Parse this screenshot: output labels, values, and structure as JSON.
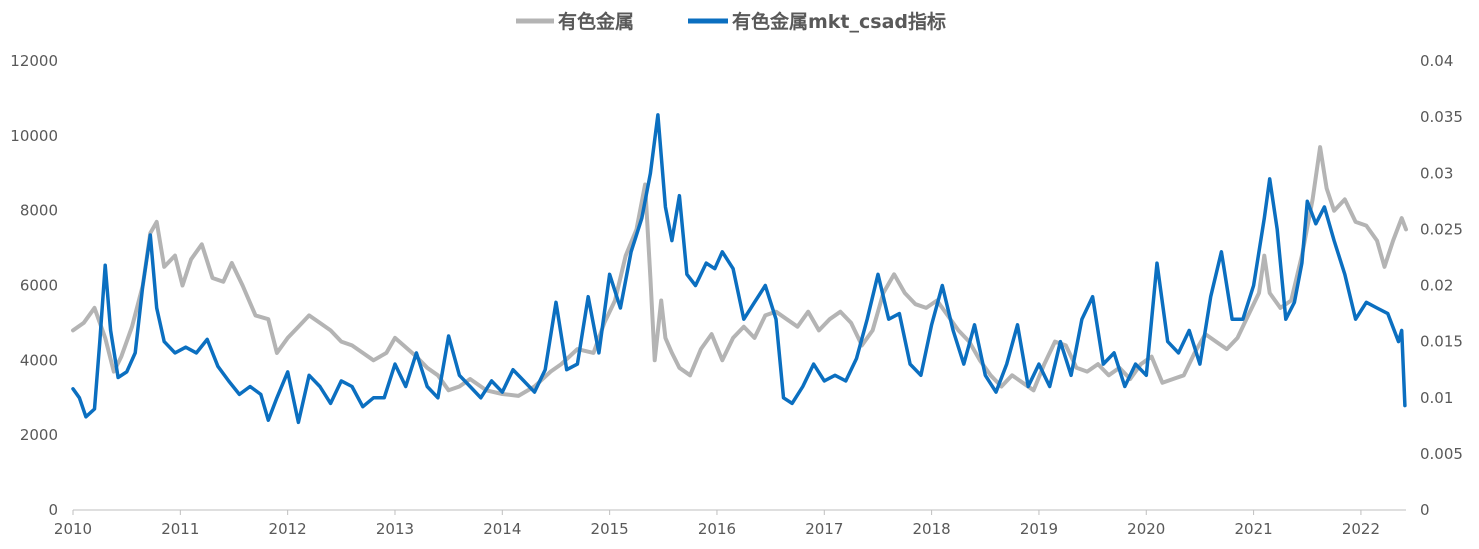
{
  "chart_data": {
    "type": "line",
    "title": "",
    "legend_position": "top-center",
    "grid": false,
    "x_ticks": [
      "2010",
      "2011",
      "2012",
      "2013",
      "2014",
      "2015",
      "2016",
      "2017",
      "2018",
      "2019",
      "2020",
      "2021",
      "2022"
    ],
    "y_left": {
      "min": 0,
      "max": 12000,
      "ticks": [
        "0",
        "2000",
        "4000",
        "6000",
        "8000",
        "10000",
        "12000"
      ]
    },
    "y_right": {
      "min": 0,
      "max": 0.04,
      "ticks": [
        "0",
        "0.005",
        "0.01",
        "0.015",
        "0.02",
        "0.025",
        "0.03",
        "0.035",
        "0.04"
      ]
    },
    "series": [
      {
        "name": "有色金属",
        "axis": "left",
        "color": "#b4b4b4",
        "points": [
          [
            2010.0,
            4800
          ],
          [
            2010.1,
            5000
          ],
          [
            2010.2,
            5400
          ],
          [
            2010.3,
            4600
          ],
          [
            2010.38,
            3700
          ],
          [
            2010.45,
            4100
          ],
          [
            2010.55,
            4900
          ],
          [
            2010.65,
            6000
          ],
          [
            2010.72,
            7400
          ],
          [
            2010.78,
            7700
          ],
          [
            2010.85,
            6500
          ],
          [
            2010.95,
            6800
          ],
          [
            2011.02,
            6000
          ],
          [
            2011.1,
            6700
          ],
          [
            2011.2,
            7100
          ],
          [
            2011.3,
            6200
          ],
          [
            2011.4,
            6100
          ],
          [
            2011.48,
            6600
          ],
          [
            2011.58,
            6000
          ],
          [
            2011.7,
            5200
          ],
          [
            2011.82,
            5100
          ],
          [
            2011.9,
            4200
          ],
          [
            2012.0,
            4600
          ],
          [
            2012.1,
            4900
          ],
          [
            2012.2,
            5200
          ],
          [
            2012.3,
            5000
          ],
          [
            2012.4,
            4800
          ],
          [
            2012.5,
            4500
          ],
          [
            2012.6,
            4400
          ],
          [
            2012.7,
            4200
          ],
          [
            2012.8,
            4000
          ],
          [
            2012.92,
            4200
          ],
          [
            2013.0,
            4600
          ],
          [
            2013.08,
            4400
          ],
          [
            2013.2,
            4100
          ],
          [
            2013.3,
            3800
          ],
          [
            2013.4,
            3600
          ],
          [
            2013.5,
            3200
          ],
          [
            2013.6,
            3300
          ],
          [
            2013.7,
            3500
          ],
          [
            2013.85,
            3200
          ],
          [
            2014.0,
            3100
          ],
          [
            2014.15,
            3050
          ],
          [
            2014.3,
            3300
          ],
          [
            2014.45,
            3700
          ],
          [
            2014.55,
            3900
          ],
          [
            2014.7,
            4300
          ],
          [
            2014.85,
            4200
          ],
          [
            2014.95,
            5000
          ],
          [
            2015.05,
            5600
          ],
          [
            2015.15,
            6800
          ],
          [
            2015.25,
            7500
          ],
          [
            2015.33,
            8700
          ],
          [
            2015.38,
            6200
          ],
          [
            2015.42,
            4000
          ],
          [
            2015.48,
            5600
          ],
          [
            2015.52,
            4600
          ],
          [
            2015.58,
            4200
          ],
          [
            2015.65,
            3800
          ],
          [
            2015.75,
            3600
          ],
          [
            2015.85,
            4300
          ],
          [
            2015.95,
            4700
          ],
          [
            2016.05,
            4000
          ],
          [
            2016.15,
            4600
          ],
          [
            2016.25,
            4900
          ],
          [
            2016.35,
            4600
          ],
          [
            2016.45,
            5200
          ],
          [
            2016.55,
            5300
          ],
          [
            2016.65,
            5100
          ],
          [
            2016.75,
            4900
          ],
          [
            2016.85,
            5300
          ],
          [
            2016.95,
            4800
          ],
          [
            2017.05,
            5100
          ],
          [
            2017.15,
            5300
          ],
          [
            2017.25,
            5000
          ],
          [
            2017.35,
            4400
          ],
          [
            2017.45,
            4800
          ],
          [
            2017.55,
            5800
          ],
          [
            2017.65,
            6300
          ],
          [
            2017.75,
            5800
          ],
          [
            2017.85,
            5500
          ],
          [
            2017.95,
            5400
          ],
          [
            2018.05,
            5600
          ],
          [
            2018.15,
            5200
          ],
          [
            2018.25,
            4800
          ],
          [
            2018.35,
            4500
          ],
          [
            2018.45,
            4000
          ],
          [
            2018.55,
            3600
          ],
          [
            2018.65,
            3300
          ],
          [
            2018.75,
            3600
          ],
          [
            2018.85,
            3400
          ],
          [
            2018.95,
            3200
          ],
          [
            2019.05,
            3900
          ],
          [
            2019.15,
            4500
          ],
          [
            2019.25,
            4400
          ],
          [
            2019.35,
            3800
          ],
          [
            2019.45,
            3700
          ],
          [
            2019.55,
            3900
          ],
          [
            2019.65,
            3600
          ],
          [
            2019.75,
            3800
          ],
          [
            2019.85,
            3500
          ],
          [
            2019.95,
            3900
          ],
          [
            2020.05,
            4100
          ],
          [
            2020.15,
            3400
          ],
          [
            2020.25,
            3500
          ],
          [
            2020.35,
            3600
          ],
          [
            2020.45,
            4200
          ],
          [
            2020.55,
            4700
          ],
          [
            2020.65,
            4500
          ],
          [
            2020.75,
            4300
          ],
          [
            2020.85,
            4600
          ],
          [
            2020.95,
            5200
          ],
          [
            2021.05,
            5800
          ],
          [
            2021.1,
            6800
          ],
          [
            2021.15,
            5800
          ],
          [
            2021.25,
            5400
          ],
          [
            2021.35,
            5600
          ],
          [
            2021.45,
            6800
          ],
          [
            2021.55,
            8300
          ],
          [
            2021.62,
            9700
          ],
          [
            2021.68,
            8600
          ],
          [
            2021.75,
            8000
          ],
          [
            2021.85,
            8300
          ],
          [
            2021.95,
            7700
          ],
          [
            2022.05,
            7600
          ],
          [
            2022.15,
            7200
          ],
          [
            2022.22,
            6500
          ],
          [
            2022.3,
            7200
          ],
          [
            2022.38,
            7800
          ],
          [
            2022.42,
            7500
          ]
        ]
      },
      {
        "name": "有色金属mkt_csad指标",
        "axis": "right",
        "color": "#0b6fc0",
        "points": [
          [
            2010.0,
            0.0108
          ],
          [
            2010.06,
            0.01
          ],
          [
            2010.12,
            0.0083
          ],
          [
            2010.2,
            0.009
          ],
          [
            2010.25,
            0.015
          ],
          [
            2010.3,
            0.0218
          ],
          [
            2010.35,
            0.016
          ],
          [
            2010.42,
            0.0118
          ],
          [
            2010.5,
            0.0123
          ],
          [
            2010.58,
            0.014
          ],
          [
            2010.65,
            0.02
          ],
          [
            2010.72,
            0.0245
          ],
          [
            2010.78,
            0.018
          ],
          [
            2010.85,
            0.015
          ],
          [
            2010.95,
            0.014
          ],
          [
            2011.05,
            0.0145
          ],
          [
            2011.15,
            0.014
          ],
          [
            2011.25,
            0.0152
          ],
          [
            2011.35,
            0.0128
          ],
          [
            2011.45,
            0.0115
          ],
          [
            2011.55,
            0.0103
          ],
          [
            2011.65,
            0.011
          ],
          [
            2011.75,
            0.0103
          ],
          [
            2011.82,
            0.008
          ],
          [
            2011.9,
            0.01
          ],
          [
            2012.0,
            0.0123
          ],
          [
            2012.1,
            0.0078
          ],
          [
            2012.2,
            0.012
          ],
          [
            2012.3,
            0.011
          ],
          [
            2012.4,
            0.0095
          ],
          [
            2012.5,
            0.0115
          ],
          [
            2012.6,
            0.011
          ],
          [
            2012.7,
            0.0092
          ],
          [
            2012.8,
            0.01
          ],
          [
            2012.9,
            0.01
          ],
          [
            2013.0,
            0.013
          ],
          [
            2013.1,
            0.011
          ],
          [
            2013.2,
            0.014
          ],
          [
            2013.3,
            0.011
          ],
          [
            2013.4,
            0.01
          ],
          [
            2013.5,
            0.0155
          ],
          [
            2013.6,
            0.012
          ],
          [
            2013.7,
            0.011
          ],
          [
            2013.8,
            0.01
          ],
          [
            2013.9,
            0.0115
          ],
          [
            2014.0,
            0.0105
          ],
          [
            2014.1,
            0.0125
          ],
          [
            2014.2,
            0.0115
          ],
          [
            2014.3,
            0.0105
          ],
          [
            2014.4,
            0.0125
          ],
          [
            2014.5,
            0.0185
          ],
          [
            2014.6,
            0.0125
          ],
          [
            2014.7,
            0.013
          ],
          [
            2014.8,
            0.019
          ],
          [
            2014.9,
            0.014
          ],
          [
            2015.0,
            0.021
          ],
          [
            2015.1,
            0.018
          ],
          [
            2015.2,
            0.023
          ],
          [
            2015.3,
            0.026
          ],
          [
            2015.38,
            0.03
          ],
          [
            2015.45,
            0.0352
          ],
          [
            2015.52,
            0.027
          ],
          [
            2015.58,
            0.024
          ],
          [
            2015.65,
            0.028
          ],
          [
            2015.72,
            0.021
          ],
          [
            2015.8,
            0.02
          ],
          [
            2015.9,
            0.022
          ],
          [
            2015.98,
            0.0215
          ],
          [
            2016.05,
            0.023
          ],
          [
            2016.15,
            0.0215
          ],
          [
            2016.25,
            0.017
          ],
          [
            2016.35,
            0.0185
          ],
          [
            2016.45,
            0.02
          ],
          [
            2016.55,
            0.017
          ],
          [
            2016.62,
            0.01
          ],
          [
            2016.7,
            0.0095
          ],
          [
            2016.8,
            0.011
          ],
          [
            2016.9,
            0.013
          ],
          [
            2017.0,
            0.0115
          ],
          [
            2017.1,
            0.012
          ],
          [
            2017.2,
            0.0115
          ],
          [
            2017.3,
            0.0135
          ],
          [
            2017.4,
            0.017
          ],
          [
            2017.5,
            0.021
          ],
          [
            2017.6,
            0.017
          ],
          [
            2017.7,
            0.0175
          ],
          [
            2017.8,
            0.013
          ],
          [
            2017.9,
            0.012
          ],
          [
            2018.0,
            0.0165
          ],
          [
            2018.1,
            0.02
          ],
          [
            2018.2,
            0.016
          ],
          [
            2018.3,
            0.013
          ],
          [
            2018.4,
            0.0165
          ],
          [
            2018.5,
            0.012
          ],
          [
            2018.6,
            0.0105
          ],
          [
            2018.7,
            0.013
          ],
          [
            2018.8,
            0.0165
          ],
          [
            2018.9,
            0.011
          ],
          [
            2019.0,
            0.013
          ],
          [
            2019.1,
            0.011
          ],
          [
            2019.2,
            0.015
          ],
          [
            2019.3,
            0.012
          ],
          [
            2019.4,
            0.017
          ],
          [
            2019.5,
            0.019
          ],
          [
            2019.6,
            0.013
          ],
          [
            2019.7,
            0.014
          ],
          [
            2019.8,
            0.011
          ],
          [
            2019.9,
            0.013
          ],
          [
            2020.0,
            0.012
          ],
          [
            2020.1,
            0.022
          ],
          [
            2020.2,
            0.015
          ],
          [
            2020.3,
            0.014
          ],
          [
            2020.4,
            0.016
          ],
          [
            2020.5,
            0.013
          ],
          [
            2020.6,
            0.019
          ],
          [
            2020.7,
            0.023
          ],
          [
            2020.8,
            0.017
          ],
          [
            2020.9,
            0.017
          ],
          [
            2021.0,
            0.02
          ],
          [
            2021.1,
            0.026
          ],
          [
            2021.15,
            0.0295
          ],
          [
            2021.22,
            0.025
          ],
          [
            2021.3,
            0.017
          ],
          [
            2021.38,
            0.0185
          ],
          [
            2021.45,
            0.022
          ],
          [
            2021.5,
            0.0275
          ],
          [
            2021.58,
            0.0255
          ],
          [
            2021.66,
            0.027
          ],
          [
            2021.75,
            0.024
          ],
          [
            2021.85,
            0.021
          ],
          [
            2021.95,
            0.017
          ],
          [
            2022.05,
            0.0185
          ],
          [
            2022.15,
            0.018
          ],
          [
            2022.25,
            0.0175
          ],
          [
            2022.35,
            0.015
          ],
          [
            2022.38,
            0.016
          ],
          [
            2022.41,
            0.0093
          ]
        ]
      }
    ]
  }
}
